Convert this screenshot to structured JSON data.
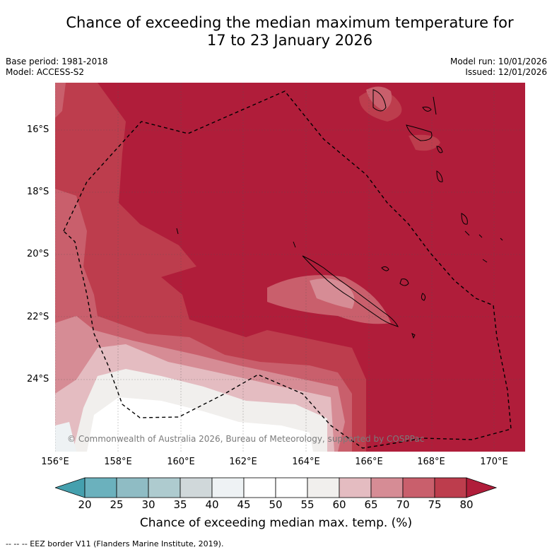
{
  "title": {
    "line1": "Chance of exceeding the median maximum temperature for",
    "line2": "17 to 23 January 2026"
  },
  "meta": {
    "base_period": "Base period: 1981-2018",
    "model": "Model: ACCESS-S2",
    "model_run": "Model run: 10/01/2026",
    "issued": "Issued: 12/01/2026"
  },
  "map": {
    "lat_labels": [
      "16°S",
      "18°S",
      "20°S",
      "22°S",
      "24°S"
    ],
    "lon_labels": [
      "156°E",
      "158°E",
      "160°E",
      "162°E",
      "164°E",
      "166°E",
      "168°E",
      "170°E"
    ],
    "copyright": "© Commonwealth of Australia 2026, Bureau of Meteorology, supported by COSPPac"
  },
  "colorbar": {
    "ticks": [
      "20",
      "25",
      "30",
      "35",
      "40",
      "45",
      "50",
      "55",
      "60",
      "65",
      "70",
      "75",
      "80"
    ],
    "colors": [
      "#45a0ae",
      "#6bb1bd",
      "#8fbcc4",
      "#aecbcf",
      "#d0d8da",
      "#eef2f4",
      "#ffffff",
      "#ffffff",
      "#f1efed",
      "#e4bcc1",
      "#d68c95",
      "#c95f6c",
      "#bd3d4d",
      "#b01d3a"
    ],
    "label": "Chance of exceeding median max. temp. (%)"
  },
  "legend": {
    "eez": "--  --  -- EEZ border V11 (Flanders Marine Institute, 2019)."
  }
}
